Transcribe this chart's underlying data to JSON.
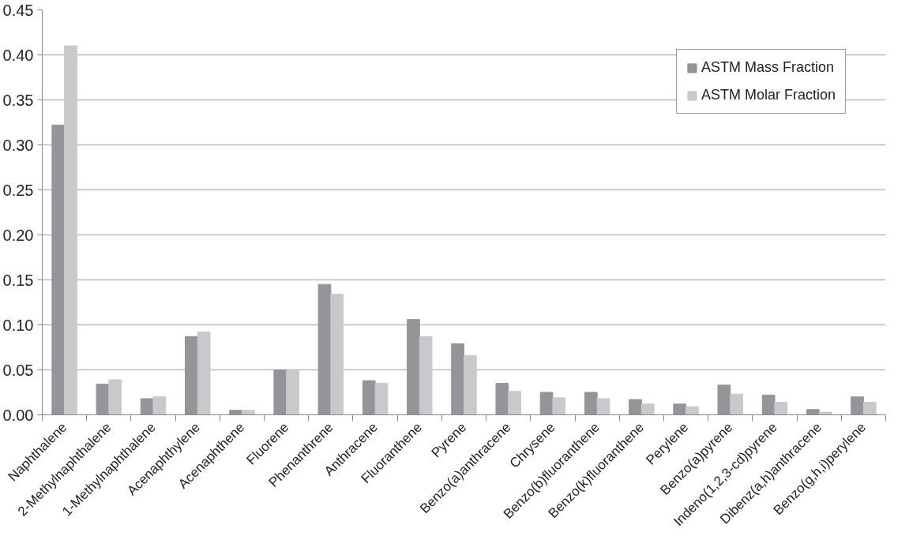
{
  "chart_data": {
    "type": "bar",
    "categories": [
      "Naphthalene",
      "2-Methylnaphthalene",
      "1-Methylnaphthalene",
      "Acenaphthylene",
      "Acenaphthene",
      "Fluorene",
      "Phenanthrene",
      "Anthracene",
      "Fluoranthene",
      "Pyrene",
      "Benzo(a)anthracene",
      "Chrysene",
      "Benzo(b)fluoranthene",
      "Benzo(k)fluoranthene",
      "Perylene",
      "Benzo(a)pyrene",
      "Indeno(1,2,3-cd)pyrene",
      "Dibenz(a,h)anthracene",
      "Benzo(g,h,i)perylene"
    ],
    "series": [
      {
        "name": "ASTM Mass Fraction",
        "color": "#939598",
        "values": [
          0.322,
          0.034,
          0.018,
          0.087,
          0.005,
          0.05,
          0.145,
          0.038,
          0.106,
          0.079,
          0.035,
          0.025,
          0.025,
          0.017,
          0.012,
          0.033,
          0.022,
          0.006,
          0.02
        ]
      },
      {
        "name": "ASTM Molar Fraction",
        "color": "#c8c9cb",
        "values": [
          0.41,
          0.039,
          0.02,
          0.092,
          0.005,
          0.049,
          0.134,
          0.035,
          0.087,
          0.066,
          0.026,
          0.019,
          0.018,
          0.012,
          0.009,
          0.023,
          0.014,
          0.003,
          0.014
        ]
      }
    ],
    "ylim": [
      0,
      0.45
    ],
    "yticks": [
      {
        "value": 0,
        "label": "0.00"
      },
      0.05,
      {
        "value": 0.1,
        "label": "0.10"
      },
      0.15,
      {
        "value": 0.2,
        "label": "0.20"
      },
      0.25,
      {
        "value": 0.3,
        "label": "0.30"
      },
      0.35,
      {
        "value": 0.4,
        "label": "0.40"
      },
      0.45
    ],
    "grid": "y",
    "legend": "top right"
  }
}
